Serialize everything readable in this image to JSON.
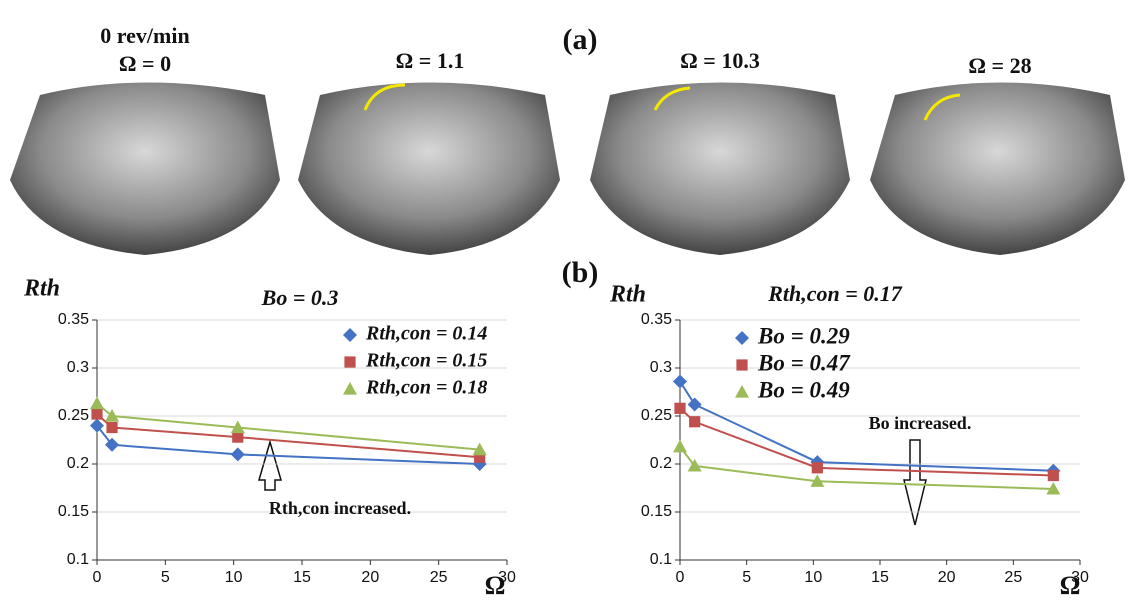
{
  "photo_labels": [
    "0 rev/min",
    "Ω = 0",
    "Ω = 1.1",
    "Ω = 10.3",
    "Ω = 28"
  ],
  "panel_labels": [
    "(a)",
    "(b)"
  ],
  "chart_data": [
    {
      "type": "line",
      "title": "Bo = 0.3",
      "y_label": "Rth",
      "x_label": "Ω",
      "annotation": "Rth,con increased.",
      "x": [
        0,
        1.1,
        10.3,
        28
      ],
      "series": [
        {
          "name": "Rth,con = 0.14",
          "color": "#4472c4",
          "marker": "diamond",
          "values": [
            0.24,
            0.22,
            0.21,
            0.2
          ]
        },
        {
          "name": "Rth,con = 0.15",
          "color": "#c0504d",
          "marker": "square",
          "values": [
            0.252,
            0.238,
            0.228,
            0.207
          ]
        },
        {
          "name": "Rth,con = 0.18",
          "color": "#9bbb59",
          "marker": "triangle",
          "values": [
            0.263,
            0.25,
            0.238,
            0.215
          ]
        }
      ],
      "xlim": [
        0,
        30
      ],
      "xticks": [
        0,
        5,
        10,
        15,
        20,
        25,
        30
      ],
      "ylim": [
        0.1,
        0.35
      ],
      "yticks": [
        0.1,
        0.15,
        0.2,
        0.25,
        0.3,
        0.35
      ],
      "grid": true
    },
    {
      "type": "line",
      "title": "Rth,con = 0.17",
      "y_label": "Rth",
      "x_label": "Ω",
      "annotation": "Bo increased.",
      "x": [
        0,
        1.1,
        10.3,
        28
      ],
      "series": [
        {
          "name": "Bo = 0.29",
          "color": "#4472c4",
          "marker": "diamond",
          "values": [
            0.286,
            0.262,
            0.202,
            0.193
          ]
        },
        {
          "name": "Bo = 0.47",
          "color": "#c0504d",
          "marker": "square",
          "values": [
            0.258,
            0.244,
            0.196,
            0.188
          ]
        },
        {
          "name": "Bo = 0.49",
          "color": "#9bbb59",
          "marker": "triangle",
          "values": [
            0.218,
            0.198,
            0.182,
            0.174
          ]
        }
      ],
      "xlim": [
        0,
        30
      ],
      "xticks": [
        0,
        5,
        10,
        15,
        20,
        25,
        30
      ],
      "ylim": [
        0.1,
        0.35
      ],
      "yticks": [
        0.1,
        0.15,
        0.2,
        0.25,
        0.3,
        0.35
      ],
      "grid": true
    }
  ]
}
